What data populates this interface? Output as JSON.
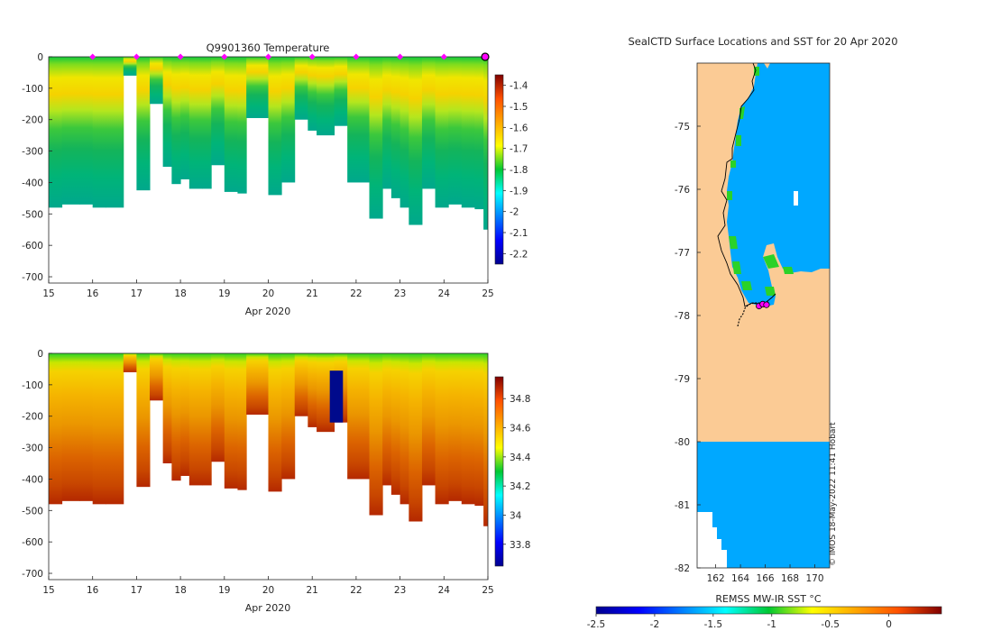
{
  "colors": {
    "land": "#fbcb95",
    "ocean_sst": "#00a8ff",
    "profile_marker": "#ff00ff",
    "track": "#000000",
    "axis": "#262626"
  },
  "chart_data": [
    {
      "type": "heatmap",
      "id": "temperature-section",
      "title": "Q9901360  Temperature",
      "xlabel": "Apr 2020",
      "ylabel": "",
      "xlim": [
        15,
        25
      ],
      "ylim": [
        -720,
        0
      ],
      "xticks": [
        "15",
        "16",
        "17",
        "18",
        "19",
        "20",
        "21",
        "22",
        "23",
        "24",
        "25"
      ],
      "yticks": [
        "0",
        "-100",
        "-200",
        "-300",
        "-400",
        "-500",
        "-600",
        "-700"
      ],
      "colorbar": {
        "range": [
          -2.25,
          -1.35
        ],
        "ticks": [
          "-1.4",
          "-1.5",
          "-1.6",
          "-1.7",
          "-1.8",
          "-1.9",
          "-2",
          "-2.1",
          "-2.2"
        ],
        "colormap": "jet"
      },
      "profile_markers_day": [
        16,
        17,
        18,
        19,
        20,
        21,
        22,
        23,
        24
      ],
      "latest_profile_day": 25,
      "profiles": [
        {
          "day": 15.0,
          "depth": -480,
          "gaps": []
        },
        {
          "day": 15.3,
          "depth": -470,
          "gaps": []
        },
        {
          "day": 15.7,
          "depth": -470,
          "gaps": []
        },
        {
          "day": 16.0,
          "depth": -480,
          "gaps": []
        },
        {
          "day": 16.3,
          "depth": -480,
          "gaps": []
        },
        {
          "day": 16.7,
          "depth": -60,
          "gaps": []
        },
        {
          "day": 17.0,
          "depth": -425,
          "gaps": []
        },
        {
          "day": 17.3,
          "depth": -150,
          "gaps": []
        },
        {
          "day": 17.6,
          "depth": -350,
          "gaps": []
        },
        {
          "day": 17.8,
          "depth": -405,
          "gaps": []
        },
        {
          "day": 18.0,
          "depth": -390,
          "gaps": []
        },
        {
          "day": 18.2,
          "depth": -420,
          "gaps": []
        },
        {
          "day": 18.5,
          "depth": -420,
          "gaps": []
        },
        {
          "day": 18.7,
          "depth": -345,
          "gaps": []
        },
        {
          "day": 19.0,
          "depth": -430,
          "gaps": []
        },
        {
          "day": 19.3,
          "depth": -435,
          "gaps": []
        },
        {
          "day": 19.5,
          "depth": -195,
          "gaps": []
        },
        {
          "day": 20.0,
          "depth": -440,
          "gaps": []
        },
        {
          "day": 20.3,
          "depth": -400,
          "gaps": []
        },
        {
          "day": 20.6,
          "depth": -200,
          "gaps": []
        },
        {
          "day": 20.9,
          "depth": -235,
          "gaps": []
        },
        {
          "day": 21.1,
          "depth": -250,
          "gaps": []
        },
        {
          "day": 21.5,
          "depth": -220,
          "gaps": []
        },
        {
          "day": 21.8,
          "depth": -400,
          "gaps": []
        },
        {
          "day": 22.1,
          "depth": -400,
          "gaps": []
        },
        {
          "day": 22.3,
          "depth": -515,
          "gaps": []
        },
        {
          "day": 22.6,
          "depth": -420,
          "gaps": []
        },
        {
          "day": 22.8,
          "depth": -450,
          "gaps": []
        },
        {
          "day": 23.0,
          "depth": -480,
          "gaps": []
        },
        {
          "day": 23.2,
          "depth": -535,
          "gaps": []
        },
        {
          "day": 23.5,
          "depth": -420,
          "gaps": []
        },
        {
          "day": 23.8,
          "depth": -480,
          "gaps": []
        },
        {
          "day": 24.1,
          "depth": -470,
          "gaps": []
        },
        {
          "day": 24.4,
          "depth": -480,
          "gaps": []
        },
        {
          "day": 24.7,
          "depth": -485,
          "gaps": []
        },
        {
          "day": 24.9,
          "depth": -550,
          "gaps": []
        }
      ]
    },
    {
      "type": "heatmap",
      "id": "salinity-section",
      "title": "",
      "xlabel": "Apr 2020",
      "ylabel": "",
      "xlim": [
        15,
        25
      ],
      "ylim": [
        -720,
        0
      ],
      "xticks": [
        "15",
        "16",
        "17",
        "18",
        "19",
        "20",
        "21",
        "22",
        "23",
        "24",
        "25"
      ],
      "yticks": [
        "0",
        "-100",
        "-200",
        "-300",
        "-400",
        "-500",
        "-600",
        "-700"
      ],
      "colorbar": {
        "range": [
          33.65,
          34.95
        ],
        "ticks": [
          "34.8",
          "34.6",
          "34.4",
          "34.2",
          "34",
          "33.8"
        ],
        "colormap": "jet"
      },
      "anomaly_block": {
        "day_start": 21.4,
        "day_end": 21.7,
        "depth_top": -55,
        "depth_bottom": -220,
        "value": 33.7
      }
    },
    {
      "type": "heatmap",
      "id": "sst-map",
      "title": "SealCTD Surface Locations and SST for 20 Apr 2020",
      "xlabel": "",
      "ylabel": "",
      "xlim": [
        160.5,
        171.2
      ],
      "ylim": [
        -82,
        -74
      ],
      "xticks": [
        "162",
        "164",
        "166",
        "168",
        "170"
      ],
      "yticks": [
        "-75",
        "-76",
        "-77",
        "-78",
        "-79",
        "-80",
        "-81",
        "-82"
      ],
      "colorbar": {
        "label": "REMSS MW-IR SST °C",
        "range": [
          -2.5,
          0.45
        ],
        "ticks": [
          "-2.5",
          "-2",
          "-1.5",
          "-1",
          "-0.5",
          "0"
        ],
        "colormap": "jet"
      },
      "ocean_sst_value": -1.4,
      "ice_shelf_edge_lat": -80,
      "seal_positions": [
        {
          "lon": 165.5,
          "lat": -77.85
        },
        {
          "lon": 165.8,
          "lat": -77.82
        },
        {
          "lon": 166.1,
          "lat": -77.83
        }
      ],
      "watermark": "© IMOS 18-May-2022 11:41 Hobart"
    }
  ]
}
